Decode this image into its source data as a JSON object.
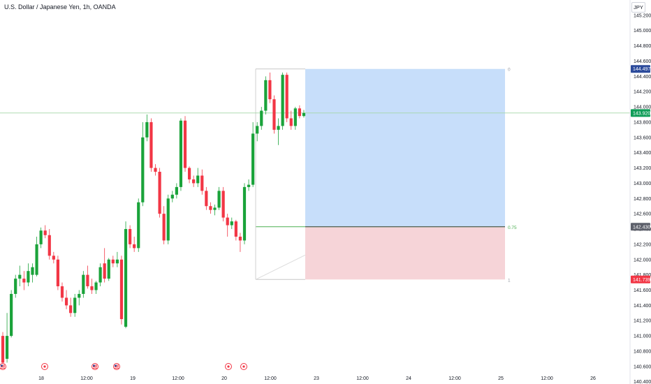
{
  "header": {
    "title": "U.S. Dollar / Japanese Yen, 1h, OANDA",
    "currency": "JPY"
  },
  "price_badges": {
    "target": "144.497",
    "current": "143.920",
    "entry": "142.430",
    "stop": "141.739"
  },
  "position_tool": {
    "top_label": "0",
    "entry_label": "0.75",
    "bottom_label": "1"
  },
  "colors": {
    "up": "#089981",
    "up_candle": "#1aa33a",
    "down": "#f23645",
    "target_zone": "#c7defa",
    "stop_zone": "#f6d4d8",
    "badge_target": "#2b4a9b",
    "badge_current": "#0f9d58",
    "badge_entry": "#5d606b",
    "badge_stop": "#f23645",
    "axis_text": "#131722",
    "price_line": "#4caf50"
  },
  "event_icons": [
    "us-flag-icon",
    "event-circle-icon",
    "us-flag-icon",
    "us-flag-icon",
    "event-circle-icon",
    "event-circle-icon"
  ],
  "chart_data": {
    "type": "candlestick",
    "title": "U.S. Dollar / Japanese Yen, 1h, OANDA",
    "ylim": [
      140.37,
      145.4
    ],
    "y_ticks": [
      "145.200",
      "145.000",
      "144.800",
      "144.600",
      "144.400",
      "144.200",
      "144.000",
      "143.800",
      "143.600",
      "143.400",
      "143.200",
      "143.000",
      "142.800",
      "142.600",
      "142.400",
      "142.200",
      "142.000",
      "141.800",
      "141.600",
      "141.400",
      "141.200",
      "141.000",
      "140.800",
      "140.600",
      "140.400"
    ],
    "x_ticks": [
      "18",
      "12:00",
      "19",
      "12:00",
      "20",
      "12:00",
      "23",
      "12:00",
      "24",
      "12:00",
      "25",
      "12:00",
      "26"
    ],
    "candles": [
      {
        "o": 141.0,
        "h": 141.05,
        "l": 140.6,
        "c": 140.65
      },
      {
        "o": 140.7,
        "h": 141.3,
        "l": 140.65,
        "c": 141.0
      },
      {
        "o": 141.0,
        "h": 141.6,
        "l": 140.98,
        "c": 141.55
      },
      {
        "o": 141.55,
        "h": 141.8,
        "l": 141.5,
        "c": 141.75
      },
      {
        "o": 141.75,
        "h": 141.92,
        "l": 141.65,
        "c": 141.8
      },
      {
        "o": 141.75,
        "h": 141.85,
        "l": 141.6,
        "c": 141.7
      },
      {
        "o": 141.7,
        "h": 141.95,
        "l": 141.65,
        "c": 141.85
      },
      {
        "o": 141.8,
        "h": 141.95,
        "l": 141.7,
        "c": 141.9
      },
      {
        "o": 141.8,
        "h": 142.3,
        "l": 141.78,
        "c": 142.2
      },
      {
        "o": 142.2,
        "h": 142.42,
        "l": 142.15,
        "c": 142.38
      },
      {
        "o": 142.38,
        "h": 142.45,
        "l": 142.28,
        "c": 142.32
      },
      {
        "o": 142.32,
        "h": 142.4,
        "l": 142.0,
        "c": 142.05
      },
      {
        "o": 142.05,
        "h": 142.1,
        "l": 141.95,
        "c": 142.0
      },
      {
        "o": 142.0,
        "h": 142.05,
        "l": 141.6,
        "c": 141.65
      },
      {
        "o": 141.65,
        "h": 141.7,
        "l": 141.45,
        "c": 141.5
      },
      {
        "o": 141.5,
        "h": 141.6,
        "l": 141.35,
        "c": 141.4
      },
      {
        "o": 141.4,
        "h": 141.5,
        "l": 141.25,
        "c": 141.3
      },
      {
        "o": 141.3,
        "h": 141.55,
        "l": 141.25,
        "c": 141.5
      },
      {
        "o": 141.5,
        "h": 141.6,
        "l": 141.4,
        "c": 141.55
      },
      {
        "o": 141.55,
        "h": 141.85,
        "l": 141.5,
        "c": 141.8
      },
      {
        "o": 141.8,
        "h": 141.92,
        "l": 141.62,
        "c": 141.65
      },
      {
        "o": 141.65,
        "h": 141.75,
        "l": 141.55,
        "c": 141.6
      },
      {
        "o": 141.6,
        "h": 141.72,
        "l": 141.55,
        "c": 141.7
      },
      {
        "o": 141.7,
        "h": 141.95,
        "l": 141.65,
        "c": 141.9
      },
      {
        "o": 141.95,
        "h": 142.15,
        "l": 141.7,
        "c": 141.75
      },
      {
        "o": 141.75,
        "h": 142.02,
        "l": 141.72,
        "c": 142.0
      },
      {
        "o": 142.0,
        "h": 142.05,
        "l": 141.9,
        "c": 141.95
      },
      {
        "o": 141.95,
        "h": 142.1,
        "l": 141.9,
        "c": 142.0
      },
      {
        "o": 142.0,
        "h": 142.05,
        "l": 141.15,
        "c": 141.22
      },
      {
        "o": 141.12,
        "h": 142.5,
        "l": 141.1,
        "c": 142.4
      },
      {
        "o": 142.4,
        "h": 142.45,
        "l": 142.15,
        "c": 142.2
      },
      {
        "o": 142.2,
        "h": 142.3,
        "l": 142.1,
        "c": 142.15
      },
      {
        "o": 142.15,
        "h": 142.8,
        "l": 142.1,
        "c": 142.75
      },
      {
        "o": 142.75,
        "h": 143.8,
        "l": 142.7,
        "c": 143.6
      },
      {
        "o": 143.6,
        "h": 143.9,
        "l": 143.55,
        "c": 143.8
      },
      {
        "o": 143.8,
        "h": 143.85,
        "l": 143.15,
        "c": 143.2
      },
      {
        "o": 143.2,
        "h": 143.25,
        "l": 143.1,
        "c": 143.15
      },
      {
        "o": 143.15,
        "h": 143.2,
        "l": 142.55,
        "c": 142.6
      },
      {
        "o": 142.6,
        "h": 142.7,
        "l": 142.2,
        "c": 142.25
      },
      {
        "o": 142.25,
        "h": 142.85,
        "l": 142.2,
        "c": 142.8
      },
      {
        "o": 142.8,
        "h": 142.9,
        "l": 142.75,
        "c": 142.85
      },
      {
        "o": 142.85,
        "h": 143.0,
        "l": 142.8,
        "c": 142.95
      },
      {
        "o": 142.95,
        "h": 143.85,
        "l": 142.9,
        "c": 143.82
      },
      {
        "o": 143.82,
        "h": 143.88,
        "l": 143.15,
        "c": 143.2
      },
      {
        "o": 143.2,
        "h": 143.22,
        "l": 143.0,
        "c": 143.05
      },
      {
        "o": 143.05,
        "h": 143.1,
        "l": 142.95,
        "c": 143.0
      },
      {
        "o": 143.0,
        "h": 143.2,
        "l": 142.95,
        "c": 143.1
      },
      {
        "o": 143.1,
        "h": 143.18,
        "l": 142.85,
        "c": 142.9
      },
      {
        "o": 142.9,
        "h": 142.95,
        "l": 142.65,
        "c": 142.7
      },
      {
        "o": 142.7,
        "h": 142.75,
        "l": 142.6,
        "c": 142.65
      },
      {
        "o": 142.65,
        "h": 142.72,
        "l": 142.58,
        "c": 142.68
      },
      {
        "o": 142.68,
        "h": 142.95,
        "l": 142.65,
        "c": 142.9
      },
      {
        "o": 142.9,
        "h": 142.95,
        "l": 142.5,
        "c": 142.55
      },
      {
        "o": 142.55,
        "h": 142.6,
        "l": 142.3,
        "c": 142.45
      },
      {
        "o": 142.45,
        "h": 142.55,
        "l": 142.4,
        "c": 142.5
      },
      {
        "o": 142.5,
        "h": 142.52,
        "l": 142.25,
        "c": 142.3
      },
      {
        "o": 142.3,
        "h": 142.35,
        "l": 142.1,
        "c": 142.25
      },
      {
        "o": 142.25,
        "h": 143.0,
        "l": 142.2,
        "c": 142.95
      },
      {
        "o": 142.95,
        "h": 143.05,
        "l": 142.9,
        "c": 142.98
      },
      {
        "o": 142.98,
        "h": 143.8,
        "l": 142.95,
        "c": 143.65
      },
      {
        "o": 143.65,
        "h": 143.8,
        "l": 143.55,
        "c": 143.75
      },
      {
        "o": 143.75,
        "h": 144.0,
        "l": 143.7,
        "c": 143.95
      },
      {
        "o": 143.95,
        "h": 144.4,
        "l": 143.9,
        "c": 144.35
      },
      {
        "o": 144.35,
        "h": 144.45,
        "l": 144.05,
        "c": 144.1
      },
      {
        "o": 144.1,
        "h": 144.15,
        "l": 143.65,
        "c": 143.7
      },
      {
        "o": 143.7,
        "h": 143.85,
        "l": 143.5,
        "c": 143.75
      },
      {
        "o": 143.75,
        "h": 144.45,
        "l": 143.7,
        "c": 144.42
      },
      {
        "o": 144.42,
        "h": 144.45,
        "l": 143.8,
        "c": 143.85
      },
      {
        "o": 143.85,
        "h": 143.95,
        "l": 143.7,
        "c": 143.75
      },
      {
        "o": 143.75,
        "h": 144.0,
        "l": 143.7,
        "c": 143.98
      },
      {
        "o": 143.98,
        "h": 144.02,
        "l": 143.85,
        "c": 143.88
      },
      {
        "o": 143.88,
        "h": 143.96,
        "l": 143.86,
        "c": 143.92
      }
    ]
  }
}
